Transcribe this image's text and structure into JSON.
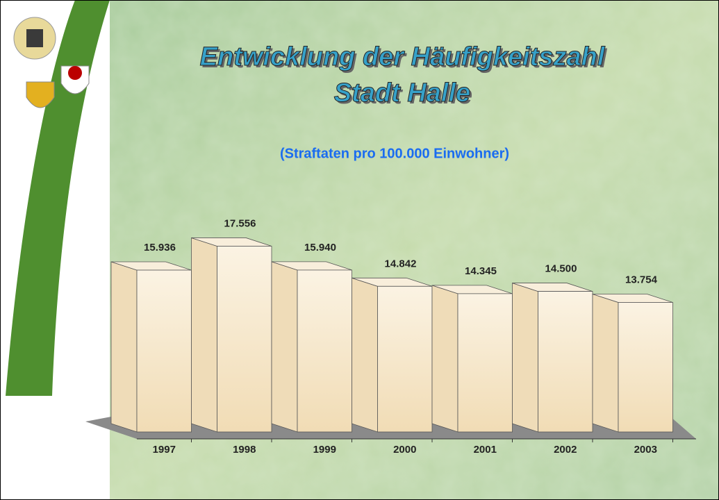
{
  "chart_data": {
    "type": "bar3d",
    "title": "Entwicklung der Häufigkeitszahl",
    "subtitle_line": "Stadt Halle",
    "subtitle": "(Straftaten pro 100.000 Einwohner)",
    "categories": [
      "1997",
      "1998",
      "1999",
      "2000",
      "2001",
      "2002",
      "2003"
    ],
    "values": [
      15936,
      17556,
      15940,
      14842,
      14345,
      14500,
      13754
    ],
    "value_labels": [
      "15.936",
      "17.556",
      "15.940",
      "14.842",
      "14.345",
      "14.500",
      "13.754"
    ],
    "color": "#f6e8cf",
    "ylim": [
      5000,
      18000
    ]
  }
}
